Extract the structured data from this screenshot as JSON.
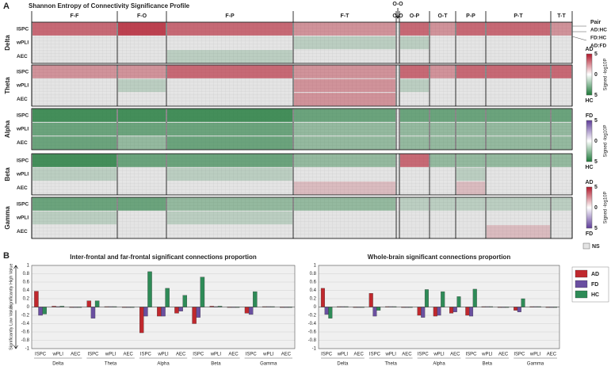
{
  "chart_data": [
    {
      "type": "heatmap",
      "panel": "A",
      "title": "Shannon Entropy of Connectivity Significance Profile",
      "columns": [
        "F-F",
        "F-O",
        "F-P",
        "F-T",
        "O-O",
        "O-P",
        "O-T",
        "P-P",
        "P-T",
        "T-T"
      ],
      "bands": [
        "Delta",
        "Theta",
        "Alpha",
        "Beta",
        "Gamma"
      ],
      "metrics": [
        "ISPC",
        "wPLI",
        "AEC"
      ],
      "values": [
        [
          [
            3,
            4,
            3,
            2,
            0,
            3,
            2,
            3,
            3,
            2
          ],
          [
            0,
            0,
            0,
            -1,
            0,
            -1,
            0,
            0,
            0,
            0
          ],
          [
            0,
            0,
            -1,
            0,
            0,
            0,
            0,
            0,
            0,
            0
          ]
        ],
        [
          [
            2,
            2,
            3,
            2,
            0,
            3,
            2,
            3,
            3,
            3
          ],
          [
            0,
            -1,
            0,
            2,
            0,
            -1,
            0,
            0,
            0,
            0
          ],
          [
            0,
            0,
            0,
            2,
            0,
            0,
            0,
            0,
            0,
            0
          ]
        ],
        [
          [
            -4,
            -4,
            -4,
            -3,
            0,
            -3,
            -3,
            -3,
            -3,
            -3
          ],
          [
            -3,
            -3,
            -3,
            -2,
            0,
            -2,
            -2,
            -2,
            -2,
            -2
          ],
          [
            -3,
            -2,
            -3,
            -2,
            0,
            -2,
            -2,
            -2,
            -2,
            -2
          ]
        ],
        [
          [
            -4,
            -3,
            -3,
            -2,
            0,
            3,
            -2,
            -2,
            -2,
            -2
          ],
          [
            -1,
            0,
            -1,
            0,
            0,
            0,
            0,
            -1,
            0,
            0
          ],
          [
            0,
            0,
            0,
            1,
            0,
            0,
            0,
            1,
            0,
            0
          ]
        ],
        [
          [
            -3,
            -3,
            -2,
            -2,
            0,
            -1,
            -1,
            -1,
            -1,
            -1
          ],
          [
            -1,
            0,
            -1,
            0,
            0,
            0,
            0,
            0,
            0,
            0
          ],
          [
            0,
            0,
            0,
            0,
            0,
            0,
            0,
            0,
            1,
            0
          ]
        ]
      ],
      "annotation": "O-O",
      "pair_legend": {
        "title": "Pair",
        "items": [
          "AD:HC",
          "FD:HC",
          "AD:FD"
        ]
      },
      "colorbar_label": "Signed -log10P",
      "colorbar_ticks": [
        {
          "value": 5,
          "label": "5"
        },
        0,
        {
          "value": -5,
          "label": "5"
        }
      ],
      "colorbars": [
        {
          "top": "AD",
          "bottom": "HC",
          "top_color": "#b2182b",
          "bottom_color": "#1b7837"
        },
        {
          "top": "FD",
          "bottom": "HC",
          "top_color": "#5e3c99",
          "bottom_color": "#1b7837"
        },
        {
          "top": "AD",
          "bottom": "FD",
          "top_color": "#b2182b",
          "bottom_color": "#5e3c99"
        }
      ],
      "ns_label": "NS"
    },
    {
      "type": "bar",
      "panel": "B",
      "title": "Inter-frontal and far-frontal significant connections proportion",
      "categories": [
        "ISPC",
        "wPLI",
        "AEC",
        "ISPC",
        "wPLI",
        "AEC",
        "ISPC",
        "wPLI",
        "AEC",
        "ISPC",
        "wPLI",
        "AEC",
        "ISPC",
        "wPLI",
        "AEC"
      ],
      "groups": [
        "Delta",
        "Theta",
        "Alpha",
        "Beta",
        "Gamma"
      ],
      "ylabel_high": "Significantly High Value",
      "ylabel_low": "Significantly Low Value",
      "ylim": [
        -1,
        1
      ],
      "yticks": [
        -1,
        -0.8,
        -0.6,
        -0.4,
        -0.2,
        0,
        0.2,
        0.4,
        0.6,
        0.8,
        1
      ],
      "grid": true,
      "series": [
        {
          "name": "AD",
          "color": "#c0282d",
          "values": [
            0.38,
            0.02,
            0,
            0.15,
            0.01,
            0,
            -0.62,
            -0.22,
            -0.15,
            -0.4,
            0.02,
            0,
            -0.15,
            0.01,
            0
          ]
        },
        {
          "name": "FD",
          "color": "#6a4fa0",
          "values": [
            -0.2,
            0.01,
            0,
            -0.27,
            0.01,
            0,
            -0.22,
            -0.22,
            -0.1,
            -0.25,
            0.01,
            0,
            -0.18,
            0.01,
            0
          ]
        },
        {
          "name": "HC",
          "color": "#2e8b57",
          "values": [
            -0.17,
            0.02,
            0,
            0.15,
            0.01,
            0,
            0.85,
            0.45,
            0.28,
            0.72,
            0.02,
            0,
            0.37,
            0.01,
            0
          ]
        }
      ]
    },
    {
      "type": "bar",
      "title": "Whole-brain significant connections proportion",
      "categories": [
        "ISPC",
        "wPLI",
        "AEC",
        "ISPC",
        "wPLI",
        "AEC",
        "ISPC",
        "wPLI",
        "AEC",
        "ISPC",
        "wPLI",
        "AEC",
        "ISPC",
        "wPLI",
        "AEC"
      ],
      "groups": [
        "Delta",
        "Theta",
        "Alpha",
        "Beta",
        "Gamma"
      ],
      "ylim": [
        -1,
        1
      ],
      "yticks": [
        -1,
        -0.8,
        -0.6,
        -0.4,
        -0.2,
        0,
        0.2,
        0.4,
        0.6,
        0.8,
        1
      ],
      "grid": true,
      "series": [
        {
          "name": "AD",
          "color": "#c0282d",
          "values": [
            0.45,
            0.01,
            0,
            0.33,
            0.01,
            0,
            -0.2,
            -0.22,
            -0.15,
            -0.2,
            0.01,
            0,
            -0.08,
            0.01,
            0
          ]
        },
        {
          "name": "FD",
          "color": "#6a4fa0",
          "values": [
            -0.18,
            0.01,
            0,
            -0.22,
            0.01,
            0,
            -0.25,
            -0.2,
            -0.12,
            -0.22,
            0.01,
            0,
            -0.12,
            0.01,
            0
          ]
        },
        {
          "name": "HC",
          "color": "#2e8b57",
          "values": [
            -0.27,
            0.01,
            0,
            -0.08,
            0.01,
            0,
            0.42,
            0.37,
            0.25,
            0.43,
            0.01,
            0,
            0.2,
            0.01,
            0
          ]
        }
      ]
    }
  ]
}
